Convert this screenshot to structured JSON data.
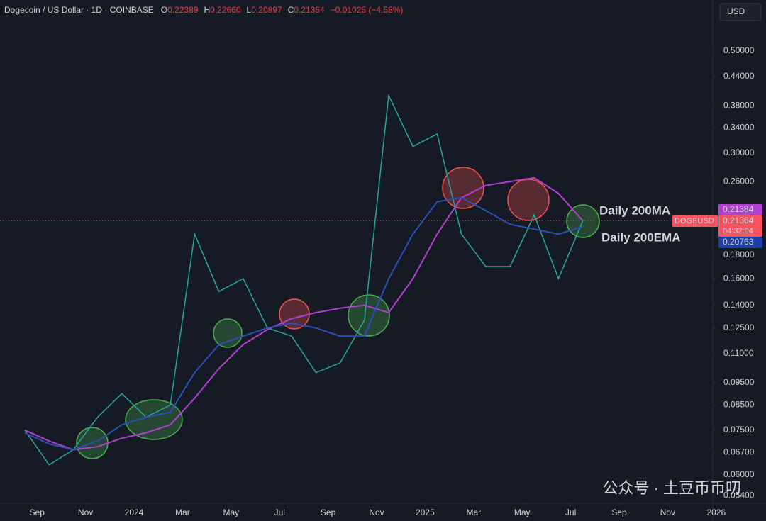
{
  "header": {
    "symbol": "Dogecoin / US Dollar · 1D · COINBASE",
    "ohlc": [
      {
        "label": "O",
        "value": "0.22389"
      },
      {
        "label": "H",
        "value": "0.22660"
      },
      {
        "label": "L",
        "value": "0.20897"
      },
      {
        "label": "C",
        "value": "0.21364"
      }
    ],
    "change": "−0.01025 (−4.58%)",
    "currency": "USD"
  },
  "chart_data": {
    "type": "line",
    "log_scale": true,
    "symbol_tag": "DOGEUSD",
    "countdown": "04:32:04",
    "x": [
      "2023-08",
      "2023-09",
      "2023-10",
      "2023-11",
      "2023-12",
      "2024-01",
      "2024-02",
      "2024-03",
      "2024-04",
      "2024-05",
      "2024-06",
      "2024-07",
      "2024-08",
      "2024-09",
      "2024-10",
      "2024-11",
      "2024-12",
      "2025-01",
      "2025-02",
      "2025-03",
      "2025-04",
      "2025-05",
      "2025-06",
      "2025-07"
    ],
    "series": [
      {
        "name": "DOGEUSD",
        "color": "#26a69a",
        "values": [
          0.075,
          0.063,
          0.068,
          0.08,
          0.09,
          0.08,
          0.085,
          0.2,
          0.15,
          0.16,
          0.125,
          0.12,
          0.1,
          0.105,
          0.13,
          0.4,
          0.31,
          0.33,
          0.2,
          0.17,
          0.17,
          0.22,
          0.16,
          0.21364
        ]
      },
      {
        "name": "Daily 200MA",
        "color": "#b23fd0",
        "values": [
          0.075,
          0.071,
          0.068,
          0.069,
          0.072,
          0.074,
          0.077,
          0.088,
          0.102,
          0.115,
          0.124,
          0.131,
          0.135,
          0.138,
          0.14,
          0.135,
          0.16,
          0.2,
          0.24,
          0.255,
          0.26,
          0.265,
          0.245,
          0.21384
        ]
      },
      {
        "name": "Daily 200EMA",
        "color": "#2a4fb8",
        "values": [
          0.074,
          0.07,
          0.068,
          0.071,
          0.077,
          0.08,
          0.082,
          0.1,
          0.115,
          0.12,
          0.125,
          0.128,
          0.125,
          0.12,
          0.12,
          0.16,
          0.2,
          0.235,
          0.24,
          0.225,
          0.21,
          0.205,
          0.2,
          0.20763
        ]
      }
    ],
    "ylim": [
      0.052,
      0.645
    ],
    "yticks": [
      {
        "value": 0.5,
        "label": "0.50000"
      },
      {
        "value": 0.44,
        "label": "0.44000"
      },
      {
        "value": 0.38,
        "label": "0.38000"
      },
      {
        "value": 0.34,
        "label": "0.34000"
      },
      {
        "value": 0.3,
        "label": "0.30000"
      },
      {
        "value": 0.26,
        "label": "0.26000"
      },
      {
        "value": 0.18,
        "label": "0.18000"
      },
      {
        "value": 0.16,
        "label": "0.16000"
      },
      {
        "value": 0.14,
        "label": "0.14000"
      },
      {
        "value": 0.125,
        "label": "0.12500"
      },
      {
        "value": 0.11,
        "label": "0.11000"
      },
      {
        "value": 0.095,
        "label": "0.09500"
      },
      {
        "value": 0.085,
        "label": "0.08500"
      },
      {
        "value": 0.075,
        "label": "0.07500"
      },
      {
        "value": 0.067,
        "label": "0.06700"
      },
      {
        "value": 0.06,
        "label": "0.06000"
      },
      {
        "value": 0.054,
        "label": "0.05400"
      }
    ],
    "xticks": [
      {
        "value": "2023-09",
        "label": "Sep"
      },
      {
        "value": "2023-11",
        "label": "Nov"
      },
      {
        "value": "2024-01",
        "label": "2024"
      },
      {
        "value": "2024-03",
        "label": "Mar"
      },
      {
        "value": "2024-05",
        "label": "May"
      },
      {
        "value": "2024-07",
        "label": "Jul"
      },
      {
        "value": "2024-09",
        "label": "Sep"
      },
      {
        "value": "2024-11",
        "label": "Nov"
      },
      {
        "value": "2025-01",
        "label": "2025"
      },
      {
        "value": "2025-03",
        "label": "Mar"
      },
      {
        "value": "2025-05",
        "label": "May"
      },
      {
        "value": "2025-07",
        "label": "Jul"
      },
      {
        "value": "2025-09",
        "label": "Sep"
      },
      {
        "value": "2025-11",
        "label": "Nov"
      },
      {
        "value": "2026-01",
        "label": "2026"
      }
    ]
  },
  "watermark": "公众号 · 土豆币币叨"
}
